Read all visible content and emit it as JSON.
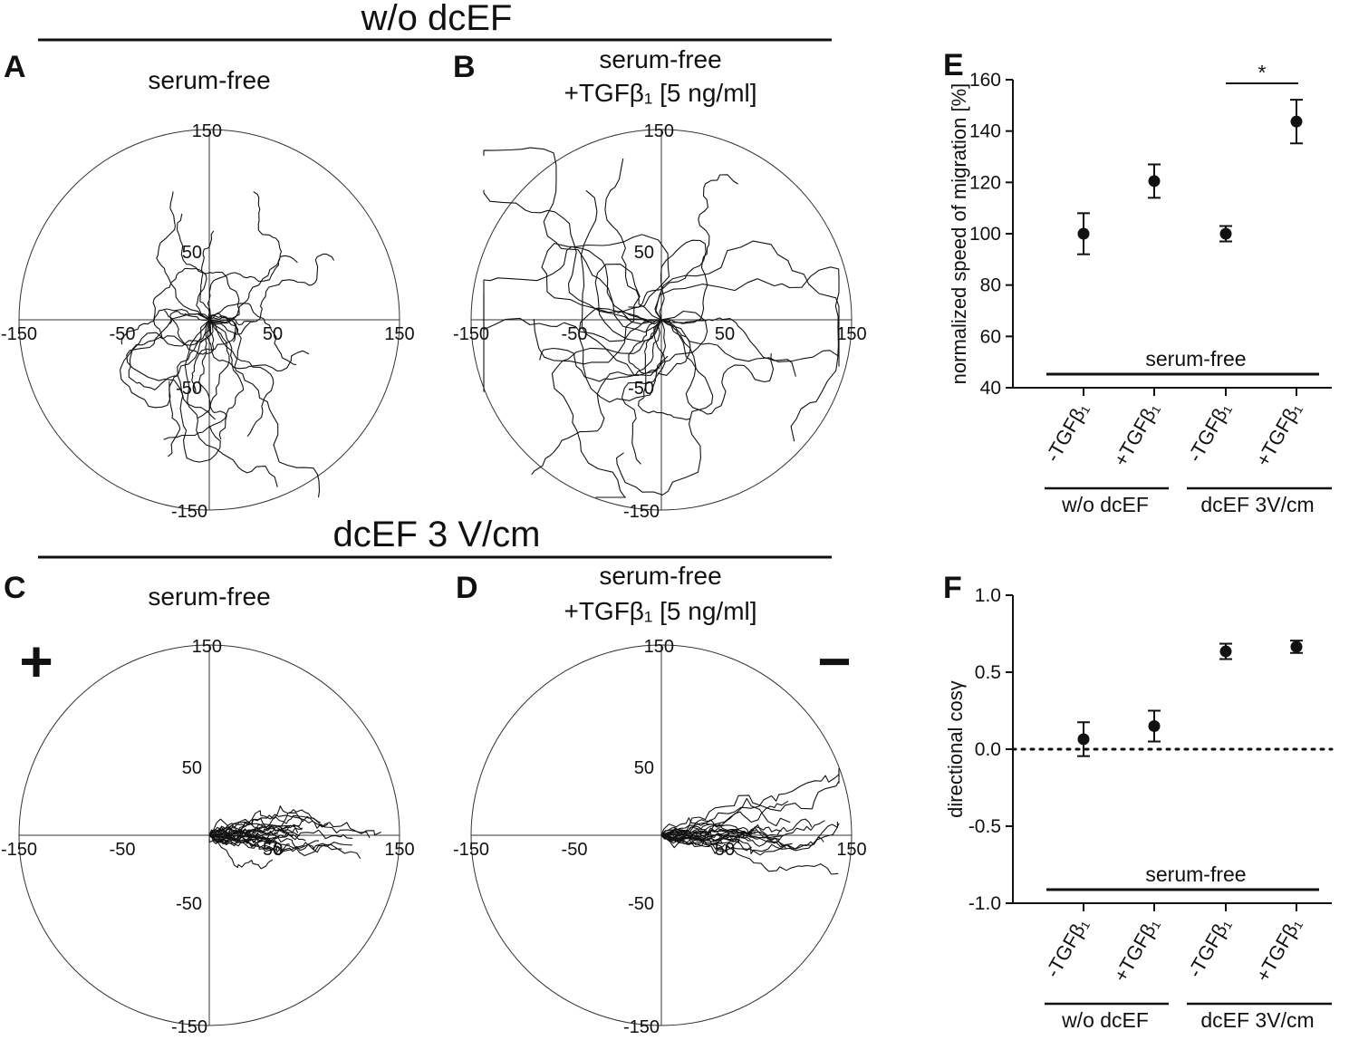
{
  "headers": {
    "top": "w/o dcEF",
    "bottom": "dcEF 3 V/cm"
  },
  "panel_letters": {
    "a": "A",
    "b": "B",
    "c": "C",
    "d": "D",
    "e": "E",
    "f": "F"
  },
  "polarity": {
    "anode": "+",
    "cathode": "−"
  },
  "trajectory_panels": [
    {
      "title_line1": "serum-free",
      "title_line2": "",
      "tick_labels": {
        "pos_outer": "150",
        "pos_inner": "50",
        "neg_inner": "-50",
        "neg_outer": "-150"
      }
    },
    {
      "title_line1": "serum-free",
      "title_line2": "+TGFβ₁ [5 ng/ml]",
      "tick_labels": {
        "pos_outer": "150",
        "pos_inner": "50",
        "neg_inner": "-50",
        "neg_outer": "-150"
      }
    },
    {
      "title_line1": "serum-free",
      "title_line2": "",
      "tick_labels": {
        "pos_outer": "150",
        "pos_inner": "50",
        "neg_inner": "-50",
        "neg_outer": "-150"
      }
    },
    {
      "title_line1": "serum-free",
      "title_line2": "+TGFβ₁ [5 ng/ml]",
      "tick_labels": {
        "pos_outer": "150",
        "pos_inner": "50",
        "neg_inner": "-50",
        "neg_outer": "-150"
      }
    }
  ],
  "chart_data": [
    {
      "type": "scatter",
      "panel": "E",
      "ylabel": "normalized speed of migration [%]",
      "ylim": [
        40,
        160
      ],
      "yticks": [
        40,
        60,
        80,
        100,
        120,
        140,
        160
      ],
      "categories": [
        "-TGFβ₁",
        "+TGFβ₁",
        "-TGFβ₁",
        "+TGFβ₁"
      ],
      "groups": [
        "w/o dcEF",
        "dcEF 3V/cm"
      ],
      "baseline_label": "serum-free",
      "significance": "*",
      "values": [
        100,
        120.5,
        100,
        143.7
      ],
      "errors": [
        8,
        6.5,
        3,
        8.5
      ]
    },
    {
      "type": "scatter",
      "panel": "F",
      "ylabel": "directional cosγ",
      "ylim": [
        -1.0,
        1.0
      ],
      "yticks": [
        -1.0,
        -0.5,
        0.0,
        0.5,
        1.0
      ],
      "ytick_labels": [
        "-1.0",
        "-0.5",
        "0.0",
        "0.5",
        "1.0"
      ],
      "categories": [
        "-TGFβ₁",
        "+TGFβ₁",
        "-TGFβ₁",
        "+TGFβ₁"
      ],
      "groups": [
        "w/o dcEF",
        "dcEF 3V/cm"
      ],
      "baseline_label": "serum-free",
      "values": [
        0.065,
        0.15,
        0.635,
        0.665
      ],
      "errors": [
        0.11,
        0.1,
        0.05,
        0.04
      ]
    }
  ],
  "colors": {
    "ink": "#111111",
    "background": "#ffffff"
  }
}
